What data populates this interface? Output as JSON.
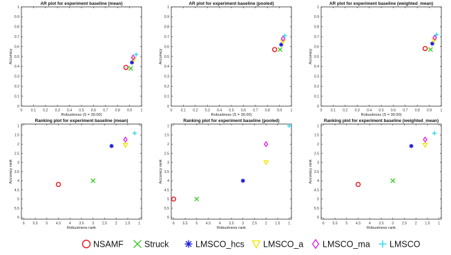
{
  "chart_data": [
    {
      "type": "scatter",
      "title": "AR plot for experiment baseline (mean)",
      "xlabel": "Robustness (S = 30.00)",
      "ylabel": "Accuracy",
      "xlim": [
        0,
        1
      ],
      "ylim": [
        0,
        1
      ],
      "xticks": [
        "0",
        "0.1",
        "0.2",
        "0.3",
        "0.4",
        "0.5",
        "0.6",
        "0.7",
        "0.8",
        "0.9",
        "1"
      ],
      "yticks": [
        "0",
        "0.1",
        "0.2",
        "0.3",
        "0.4",
        "0.5",
        "0.6",
        "0.7",
        "0.8",
        "0.9",
        "1"
      ],
      "grid": false,
      "series": [
        {
          "name": "NSAMF",
          "x": 0.87,
          "y": 0.39
        },
        {
          "name": "Struck",
          "x": 0.91,
          "y": 0.38
        },
        {
          "name": "LMSCO_hcs",
          "x": 0.92,
          "y": 0.44
        },
        {
          "name": "LMSCO_a",
          "x": 0.935,
          "y": 0.47
        },
        {
          "name": "LMSCO_ma",
          "x": 0.93,
          "y": 0.49
        },
        {
          "name": "LMSCO",
          "x": 0.955,
          "y": 0.52
        }
      ]
    },
    {
      "type": "scatter",
      "title": "AR plot for experiment baseline (pooled)",
      "xlabel": "Robustness (S = 30.00)",
      "ylabel": "Accuracy",
      "xlim": [
        0,
        1
      ],
      "ylim": [
        0,
        1
      ],
      "xticks": [
        "0",
        "0.1",
        "0.2",
        "0.3",
        "0.4",
        "0.5",
        "0.6",
        "0.7",
        "0.8",
        "0.9",
        "1"
      ],
      "yticks": [
        "0",
        "0.1",
        "0.2",
        "0.3",
        "0.4",
        "0.5",
        "0.6",
        "0.7",
        "0.8",
        "0.9",
        "1"
      ],
      "grid": false,
      "series": [
        {
          "name": "NSAMF",
          "x": 0.86,
          "y": 0.57
        },
        {
          "name": "Struck",
          "x": 0.905,
          "y": 0.57
        },
        {
          "name": "LMSCO_hcs",
          "x": 0.915,
          "y": 0.62
        },
        {
          "name": "LMSCO_a",
          "x": 0.93,
          "y": 0.65
        },
        {
          "name": "LMSCO_ma",
          "x": 0.93,
          "y": 0.68
        },
        {
          "name": "LMSCO",
          "x": 0.945,
          "y": 0.71
        }
      ]
    },
    {
      "type": "scatter",
      "title": "AR plot for experiment baseline (weighted_mean)",
      "xlabel": "Robustness (S = 30.00)",
      "ylabel": "Accuracy",
      "xlim": [
        0,
        1
      ],
      "ylim": [
        0,
        1
      ],
      "xticks": [
        "0",
        "0.1",
        "0.2",
        "0.3",
        "0.4",
        "0.5",
        "0.6",
        "0.7",
        "0.8",
        "0.9",
        "1"
      ],
      "yticks": [
        "0",
        "0.1",
        "0.2",
        "0.3",
        "0.4",
        "0.5",
        "0.6",
        "0.7",
        "0.8",
        "0.9",
        "1"
      ],
      "grid": false,
      "series": [
        {
          "name": "NSAMF",
          "x": 0.865,
          "y": 0.58
        },
        {
          "name": "Struck",
          "x": 0.91,
          "y": 0.57
        },
        {
          "name": "LMSCO_hcs",
          "x": 0.925,
          "y": 0.63
        },
        {
          "name": "LMSCO_a",
          "x": 0.94,
          "y": 0.66
        },
        {
          "name": "LMSCO_ma",
          "x": 0.945,
          "y": 0.69
        },
        {
          "name": "LMSCO",
          "x": 0.96,
          "y": 0.72
        }
      ]
    },
    {
      "type": "scatter",
      "title": "Ranking plot for experiment baseline (mean)",
      "xlabel": "Robustness rank",
      "ylabel": "Accuracy rank",
      "xlim": [
        6.1,
        0.9
      ],
      "ylim": [
        6.1,
        0.9
      ],
      "xticks": [
        "6",
        "5.5",
        "5",
        "4.5",
        "4",
        "3.5",
        "3",
        "2.5",
        "2",
        "1.5",
        "1"
      ],
      "yticks": [
        "1",
        "1.5",
        "2",
        "2.5",
        "3",
        "3.5",
        "4",
        "4.5",
        "5",
        "5.5",
        "6"
      ],
      "grid": false,
      "series": [
        {
          "name": "NSAMF",
          "x": 4.5,
          "y": 4.2
        },
        {
          "name": "Struck",
          "x": 3.0,
          "y": 4.0
        },
        {
          "name": "LMSCO_hcs",
          "x": 2.2,
          "y": 2.1
        },
        {
          "name": "LMSCO_a",
          "x": 1.6,
          "y": 2.05
        },
        {
          "name": "LMSCO_ma",
          "x": 1.6,
          "y": 1.75
        },
        {
          "name": "LMSCO",
          "x": 1.2,
          "y": 1.4
        }
      ]
    },
    {
      "type": "scatter",
      "title": "Ranking plot for experiment baseline (pooled)",
      "xlabel": "Robustness rank",
      "ylabel": "Accuracy rank",
      "xlim": [
        6.1,
        0.9
      ],
      "ylim": [
        6.1,
        0.9
      ],
      "xticks": [
        "6",
        "5.5",
        "5",
        "4.5",
        "4",
        "3.5",
        "3",
        "2.5",
        "2",
        "1.5",
        "1"
      ],
      "yticks": [
        "1",
        "1.5",
        "2",
        "2.5",
        "3",
        "3.5",
        "4",
        "4.5",
        "5",
        "5.5",
        "6"
      ],
      "grid": false,
      "series": [
        {
          "name": "NSAMF",
          "x": 6.0,
          "y": 5.0
        },
        {
          "name": "Struck",
          "x": 5.0,
          "y": 5.0
        },
        {
          "name": "LMSCO_hcs",
          "x": 3.0,
          "y": 4.0
        },
        {
          "name": "LMSCO_a",
          "x": 2.0,
          "y": 3.0
        },
        {
          "name": "LMSCO_ma",
          "x": 2.0,
          "y": 2.0
        },
        {
          "name": "LMSCO",
          "x": 1.0,
          "y": 1.0
        }
      ]
    },
    {
      "type": "scatter",
      "title": "Ranking plot for experiment baseline (weighted_mean)",
      "xlabel": "Robustness rank",
      "ylabel": "Accuracy rank",
      "xlim": [
        6.1,
        0.9
      ],
      "ylim": [
        6.1,
        0.9
      ],
      "xticks": [
        "6",
        "5.5",
        "5",
        "4.5",
        "4",
        "3.5",
        "3",
        "2.5",
        "2",
        "1.5",
        "1"
      ],
      "yticks": [
        "1",
        "1.5",
        "2",
        "2.5",
        "3",
        "3.5",
        "4",
        "4.5",
        "5",
        "5.5",
        "6"
      ],
      "grid": false,
      "series": [
        {
          "name": "NSAMF",
          "x": 4.5,
          "y": 4.2
        },
        {
          "name": "Struck",
          "x": 3.0,
          "y": 4.0
        },
        {
          "name": "LMSCO_hcs",
          "x": 2.2,
          "y": 2.1
        },
        {
          "name": "LMSCO_a",
          "x": 1.6,
          "y": 2.05
        },
        {
          "name": "LMSCO_ma",
          "x": 1.6,
          "y": 1.75
        },
        {
          "name": "LMSCO",
          "x": 1.2,
          "y": 1.4
        }
      ]
    }
  ],
  "legend": {
    "placement": "bottom",
    "items": [
      {
        "name": "NSAMF",
        "marker": "circle",
        "color": "#e8141b"
      },
      {
        "name": "Struck",
        "marker": "x",
        "color": "#3ccc28"
      },
      {
        "name": "LMSCO_hcs",
        "marker": "asterisk",
        "color": "#1e1edc"
      },
      {
        "name": "LMSCO_a",
        "marker": "triangle-down",
        "color": "#f0e60a"
      },
      {
        "name": "LMSCO_ma",
        "marker": "diamond",
        "color": "#dc28e6"
      },
      {
        "name": "LMSCO",
        "marker": "plus",
        "color": "#28d7f0"
      }
    ]
  }
}
